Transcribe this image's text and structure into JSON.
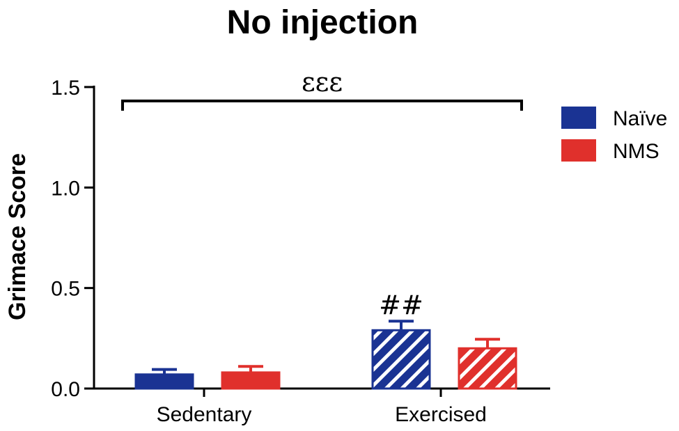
{
  "chart_data": {
    "type": "bar",
    "title": "No injection",
    "ylabel": "Grimace Score",
    "xlabel": "",
    "ylim": [
      0,
      1.5
    ],
    "yticks": [
      "0.0",
      "0.5",
      "1.0",
      "1.5"
    ],
    "categories": [
      "Sedentary",
      "Exercised"
    ],
    "series": [
      {
        "name": "Naïve",
        "color": "#1a3393",
        "values": [
          0.07,
          0.29
        ],
        "errors": [
          0.025,
          0.045
        ],
        "pattern": [
          "solid",
          "hatched"
        ]
      },
      {
        "name": "NMS",
        "color": "#e0302c",
        "values": [
          0.08,
          0.2
        ],
        "errors": [
          0.03,
          0.045
        ],
        "pattern": [
          "solid",
          "hatched"
        ]
      }
    ],
    "annotations": {
      "bracket_label": "ɛɛɛ",
      "bar_label": "##"
    },
    "legend_position": "right"
  }
}
